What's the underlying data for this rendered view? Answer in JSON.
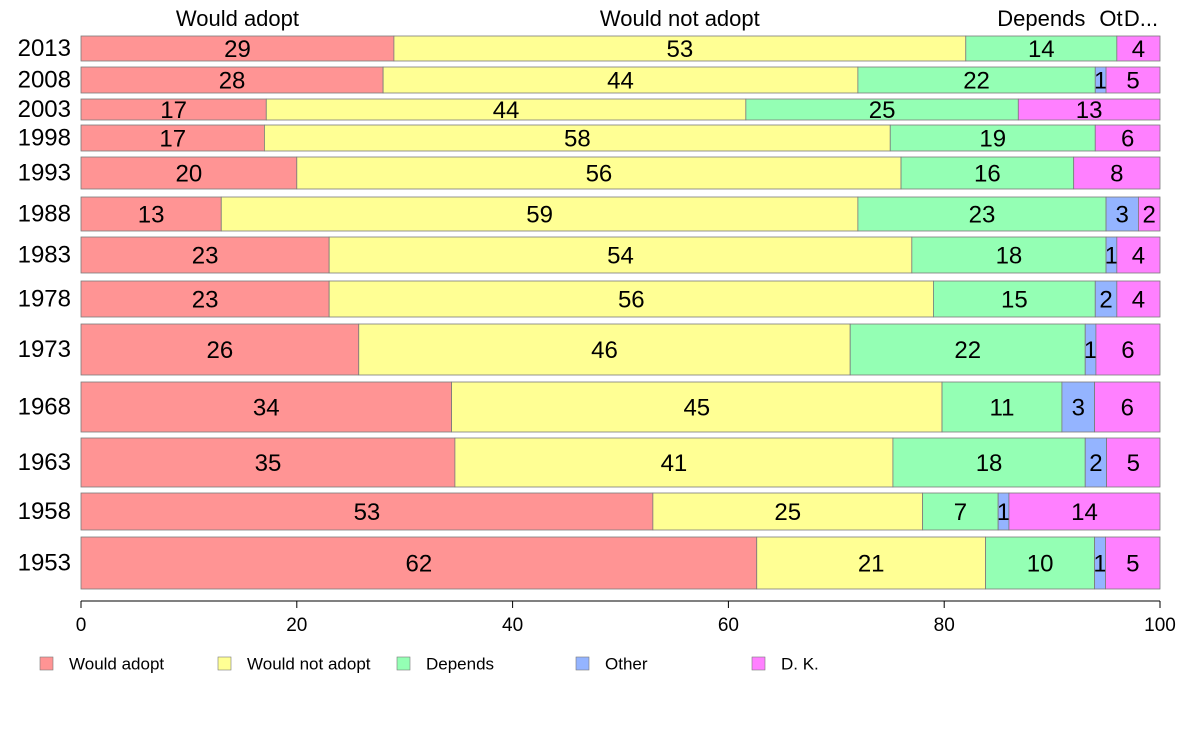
{
  "chart_data": {
    "type": "bar",
    "orientation": "horizontal",
    "stacked": true,
    "categories": [
      "2013",
      "2008",
      "2003",
      "1998",
      "1993",
      "1988",
      "1983",
      "1978",
      "1973",
      "1968",
      "1963",
      "1958",
      "1953"
    ],
    "series": [
      {
        "name": "Would adopt",
        "color": "#ff9494",
        "values": [
          29,
          28,
          17,
          17,
          20,
          13,
          23,
          23,
          26,
          34,
          35,
          53,
          62
        ]
      },
      {
        "name": "Would not adopt",
        "color": "#ffff94",
        "values": [
          53,
          44,
          44,
          58,
          56,
          59,
          54,
          56,
          46,
          45,
          41,
          25,
          21
        ]
      },
      {
        "name": "Depends",
        "color": "#94ffb4",
        "values": [
          14,
          22,
          25,
          19,
          16,
          23,
          18,
          15,
          22,
          11,
          18,
          7,
          10
        ]
      },
      {
        "name": "Other",
        "color": "#94b4ff",
        "values": [
          0,
          1,
          0,
          0,
          0,
          3,
          1,
          2,
          1,
          3,
          2,
          1,
          1
        ]
      },
      {
        "name": "D. K.",
        "color": "#ff80ff",
        "values": [
          4,
          5,
          13,
          6,
          8,
          2,
          4,
          4,
          6,
          6,
          5,
          14,
          5
        ]
      }
    ],
    "totals": [
      100,
      100,
      99,
      100,
      100,
      100,
      100,
      100,
      101,
      99,
      101,
      100,
      99
    ],
    "top_labels": [
      "Would adopt",
      "Would not adopt",
      "Depends",
      "Ot",
      "D..."
    ],
    "xlim": [
      0,
      100
    ],
    "xticks": [
      0,
      20,
      40,
      60,
      80,
      100
    ],
    "xlabel": "",
    "ylabel": "",
    "grid": false,
    "legend": {
      "position": "bottom",
      "entries": [
        "Would adopt",
        "Would not adopt",
        "Depends",
        "Other",
        "D. K."
      ]
    }
  }
}
